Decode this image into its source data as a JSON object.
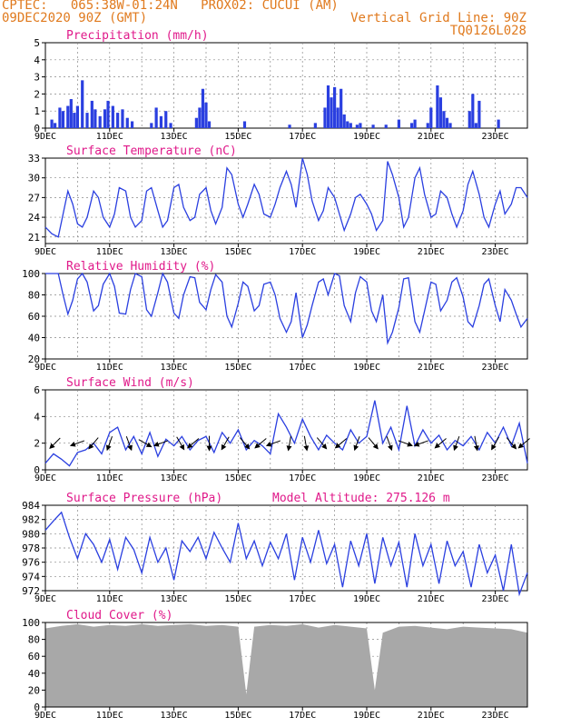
{
  "header": {
    "station": "CPTEC:   065:38W-01:24N   PROX02: CUCUI (AM)",
    "date": "09DEC2020 90Z (GMT)",
    "grid_note": "Vertical Grid Line: 90Z",
    "code": "TQ0126L028"
  },
  "colors": {
    "header": "#e07a1e",
    "title": "#e0198a",
    "line": "#2a3fe0",
    "bar": "#2a3fe0",
    "wind_arrow": "#000000",
    "cloud": "#a8a8a8",
    "grid": "#888888"
  },
  "x_ticks": [
    "9DEC",
    "11DEC",
    "13DEC",
    "15DEC",
    "17DEC",
    "19DEC",
    "21DEC",
    "23DEC"
  ],
  "x_tick_days": [
    0,
    2,
    4,
    6,
    8,
    10,
    12,
    14
  ],
  "chart_data": [
    {
      "type": "bar",
      "title": "Precipitation (mm/h)",
      "ylim": [
        0,
        5
      ],
      "yticks": [
        0,
        1,
        2,
        3,
        4,
        5
      ],
      "xlim": [
        0,
        15
      ],
      "x": [
        0.2,
        0.3,
        0.45,
        0.55,
        0.7,
        0.8,
        0.9,
        1.0,
        1.15,
        1.3,
        1.45,
        1.55,
        1.7,
        1.85,
        1.95,
        2.1,
        2.25,
        2.4,
        2.55,
        2.7,
        3.3,
        3.45,
        3.6,
        3.75,
        3.9,
        4.7,
        4.8,
        4.9,
        5.0,
        5.1,
        6.2,
        7.6,
        8.4,
        8.7,
        8.8,
        8.9,
        9.0,
        9.1,
        9.2,
        9.3,
        9.4,
        9.5,
        9.7,
        9.8,
        10.2,
        10.6,
        11.0,
        11.4,
        11.5,
        11.9,
        12.0,
        12.2,
        12.3,
        12.4,
        12.5,
        12.6,
        13.2,
        13.3,
        13.4,
        13.5,
        14.1
      ],
      "values": [
        0.5,
        0.3,
        1.2,
        1.0,
        1.3,
        1.7,
        0.9,
        1.3,
        2.8,
        0.9,
        1.6,
        1.1,
        0.7,
        1.1,
        1.6,
        1.3,
        0.9,
        1.1,
        0.6,
        0.4,
        0.3,
        1.2,
        0.7,
        1.0,
        0.3,
        0.6,
        1.2,
        2.3,
        1.5,
        0.4,
        0.4,
        0.2,
        0.3,
        1.2,
        2.5,
        1.8,
        2.4,
        1.2,
        2.3,
        0.8,
        0.4,
        0.3,
        0.2,
        0.3,
        0.2,
        0.2,
        0.5,
        0.3,
        0.5,
        0.3,
        1.2,
        2.5,
        1.8,
        1.0,
        0.6,
        0.3,
        1.0,
        2.0,
        0.3,
        1.6,
        0.5
      ]
    },
    {
      "type": "line",
      "title": "Surface Temperature (nC)",
      "ylim": [
        20,
        33
      ],
      "yticks": [
        21,
        24,
        27,
        30,
        33
      ],
      "xlim": [
        0,
        15
      ],
      "series": [
        {
          "x": [
            0,
            0.2,
            0.4,
            0.55,
            0.7,
            0.85,
            1.0,
            1.15,
            1.3,
            1.5,
            1.65,
            1.8,
            2.0,
            2.15,
            2.3,
            2.5,
            2.65,
            2.8,
            3.0,
            3.15,
            3.3,
            3.5,
            3.65,
            3.8,
            4.0,
            4.15,
            4.3,
            4.5,
            4.65,
            4.8,
            5.0,
            5.15,
            5.3,
            5.5,
            5.65,
            5.8,
            6.0,
            6.15,
            6.3,
            6.5,
            6.65,
            6.8,
            7.0,
            7.15,
            7.3,
            7.5,
            7.65,
            7.8,
            8.0,
            8.15,
            8.3,
            8.5,
            8.65,
            8.8,
            9.0,
            9.15,
            9.3,
            9.5,
            9.65,
            9.8,
            10.0,
            10.15,
            10.3,
            10.5,
            10.65,
            10.8,
            11.0,
            11.15,
            11.3,
            11.5,
            11.65,
            11.8,
            12.0,
            12.15,
            12.3,
            12.5,
            12.65,
            12.8,
            13.0,
            13.15,
            13.3,
            13.5,
            13.65,
            13.8,
            14.0,
            14.15,
            14.3,
            14.5,
            14.65,
            14.8,
            15.0
          ],
          "values": [
            22.5,
            21.5,
            21.0,
            24.5,
            28.0,
            26.0,
            23.0,
            22.5,
            24.0,
            28.0,
            27.0,
            24.0,
            22.5,
            24.5,
            28.5,
            28.0,
            24.0,
            22.5,
            23.5,
            28.0,
            28.5,
            25.0,
            22.5,
            23.5,
            28.5,
            29.0,
            25.5,
            23.5,
            24.0,
            27.5,
            28.5,
            25.0,
            23.0,
            25.5,
            31.5,
            30.5,
            26.0,
            24.0,
            26.0,
            29.0,
            27.5,
            24.5,
            24.0,
            26.0,
            28.5,
            31.0,
            29.0,
            25.5,
            33.0,
            30.5,
            26.5,
            23.5,
            25.0,
            28.5,
            27.0,
            24.5,
            22.0,
            24.5,
            27.0,
            27.5,
            26.0,
            24.5,
            22.0,
            23.5,
            32.5,
            30.5,
            27.0,
            22.5,
            24.0,
            30.0,
            31.5,
            27.5,
            24.0,
            24.5,
            28.0,
            27.0,
            24.5,
            22.5,
            25.0,
            29.0,
            31.0,
            27.5,
            24.0,
            22.5,
            26.0,
            28.0,
            24.5,
            26.0,
            28.5,
            28.5,
            27.0
          ]
        }
      ]
    },
    {
      "type": "line",
      "title": "Relative Humidity (%)",
      "ylim": [
        20,
        100
      ],
      "yticks": [
        20,
        40,
        60,
        80,
        100
      ],
      "xlim": [
        0,
        15
      ],
      "series": [
        {
          "x": [
            0,
            0.2,
            0.4,
            0.55,
            0.7,
            0.85,
            1.0,
            1.15,
            1.3,
            1.5,
            1.65,
            1.8,
            2.0,
            2.15,
            2.3,
            2.5,
            2.65,
            2.8,
            3.0,
            3.15,
            3.3,
            3.5,
            3.65,
            3.8,
            4.0,
            4.15,
            4.3,
            4.5,
            4.65,
            4.8,
            5.0,
            5.15,
            5.3,
            5.5,
            5.65,
            5.8,
            6.0,
            6.15,
            6.3,
            6.5,
            6.65,
            6.8,
            7.0,
            7.15,
            7.3,
            7.5,
            7.65,
            7.8,
            8.0,
            8.15,
            8.3,
            8.5,
            8.65,
            8.8,
            9.0,
            9.15,
            9.3,
            9.5,
            9.65,
            9.8,
            10.0,
            10.15,
            10.3,
            10.5,
            10.65,
            10.8,
            11.0,
            11.15,
            11.3,
            11.5,
            11.65,
            11.8,
            12.0,
            12.15,
            12.3,
            12.5,
            12.65,
            12.8,
            13.0,
            13.15,
            13.3,
            13.5,
            13.65,
            13.8,
            14.0,
            14.15,
            14.3,
            14.5,
            14.65,
            14.8,
            15.0
          ],
          "values": [
            100,
            100,
            100,
            80,
            62,
            75,
            95,
            100,
            92,
            65,
            70,
            90,
            100,
            88,
            63,
            62,
            85,
            100,
            97,
            66,
            60,
            82,
            100,
            92,
            63,
            58,
            80,
            97,
            96,
            73,
            66,
            85,
            99,
            92,
            60,
            50,
            72,
            92,
            88,
            65,
            70,
            90,
            92,
            80,
            58,
            45,
            55,
            82,
            40,
            52,
            70,
            92,
            95,
            80,
            100,
            98,
            70,
            55,
            82,
            97,
            92,
            65,
            55,
            80,
            35,
            45,
            68,
            95,
            96,
            55,
            45,
            65,
            92,
            90,
            65,
            75,
            92,
            96,
            78,
            55,
            50,
            70,
            90,
            95,
            70,
            55,
            85,
            75,
            62,
            50,
            58
          ]
        }
      ]
    },
    {
      "type": "line",
      "title": "Surface Wind (m/s)",
      "ylim": [
        0,
        6
      ],
      "yticks": [
        0,
        2,
        4,
        6
      ],
      "xlim": [
        0,
        15
      ],
      "series": [
        {
          "x": [
            0,
            0.25,
            0.5,
            0.75,
            1.0,
            1.25,
            1.5,
            1.75,
            2.0,
            2.25,
            2.5,
            2.75,
            3.0,
            3.25,
            3.5,
            3.75,
            4.0,
            4.25,
            4.5,
            4.75,
            5.0,
            5.25,
            5.5,
            5.75,
            6.0,
            6.25,
            6.5,
            6.75,
            7.0,
            7.25,
            7.5,
            7.75,
            8.0,
            8.25,
            8.5,
            8.75,
            9.0,
            9.25,
            9.5,
            9.75,
            10.0,
            10.25,
            10.5,
            10.75,
            11.0,
            11.25,
            11.5,
            11.75,
            12.0,
            12.25,
            12.5,
            12.75,
            13.0,
            13.25,
            13.5,
            13.75,
            14.0,
            14.25,
            14.5,
            14.75,
            15.0
          ],
          "values": [
            0.5,
            1.2,
            0.8,
            0.3,
            1.3,
            1.5,
            2.0,
            1.2,
            2.8,
            3.2,
            1.5,
            2.5,
            1.2,
            2.8,
            1.0,
            2.3,
            1.8,
            2.5,
            1.5,
            2.2,
            2.5,
            1.3,
            2.8,
            2.0,
            3.0,
            1.5,
            2.2,
            1.8,
            1.2,
            4.2,
            3.2,
            2.0,
            3.8,
            2.5,
            1.5,
            2.6,
            2.0,
            1.5,
            3.0,
            2.0,
            2.5,
            5.2,
            2.0,
            3.2,
            1.5,
            4.8,
            1.8,
            3.0,
            2.0,
            2.6,
            1.5,
            2.2,
            1.8,
            2.5,
            1.5,
            2.8,
            2.0,
            3.2,
            1.8,
            3.5,
            0.5
          ]
        }
      ],
      "arrows": [
        {
          "x": 0.3,
          "dir": 225
        },
        {
          "x": 1.0,
          "dir": 250
        },
        {
          "x": 1.5,
          "dir": 220
        },
        {
          "x": 2.0,
          "dir": 200
        },
        {
          "x": 2.6,
          "dir": 160
        },
        {
          "x": 3.1,
          "dir": 120
        },
        {
          "x": 3.6,
          "dir": 250
        },
        {
          "x": 4.2,
          "dir": 150
        },
        {
          "x": 4.6,
          "dir": 230
        },
        {
          "x": 5.1,
          "dir": 180
        },
        {
          "x": 5.6,
          "dir": 210
        },
        {
          "x": 6.2,
          "dir": 140
        },
        {
          "x": 6.7,
          "dir": 230
        },
        {
          "x": 7.1,
          "dir": 250
        },
        {
          "x": 7.6,
          "dir": 190
        },
        {
          "x": 8.1,
          "dir": 170
        },
        {
          "x": 8.6,
          "dir": 140
        },
        {
          "x": 9.2,
          "dir": 230
        },
        {
          "x": 9.7,
          "dir": 200
        },
        {
          "x": 10.2,
          "dir": 140
        },
        {
          "x": 10.7,
          "dir": 160
        },
        {
          "x": 11.2,
          "dir": 110
        },
        {
          "x": 11.7,
          "dir": 250
        },
        {
          "x": 12.3,
          "dir": 230
        },
        {
          "x": 12.8,
          "dir": 200
        },
        {
          "x": 13.4,
          "dir": 170
        },
        {
          "x": 14.0,
          "dir": 210
        },
        {
          "x": 14.5,
          "dir": 140
        },
        {
          "x": 14.9,
          "dir": 230
        }
      ]
    },
    {
      "type": "line",
      "title": "Surface Pressure (hPa)",
      "note": "Model Altitude: 275.126 m",
      "ylim": [
        972,
        984
      ],
      "yticks": [
        972,
        974,
        976,
        978,
        980,
        982,
        984
      ],
      "xlim": [
        0,
        15
      ],
      "series": [
        {
          "x": [
            0,
            0.25,
            0.5,
            0.75,
            1.0,
            1.25,
            1.5,
            1.75,
            2.0,
            2.25,
            2.5,
            2.75,
            3.0,
            3.25,
            3.5,
            3.75,
            4.0,
            4.25,
            4.5,
            4.75,
            5.0,
            5.25,
            5.5,
            5.75,
            6.0,
            6.25,
            6.5,
            6.75,
            7.0,
            7.25,
            7.5,
            7.75,
            8.0,
            8.25,
            8.5,
            8.75,
            9.0,
            9.25,
            9.5,
            9.75,
            10.0,
            10.25,
            10.5,
            10.75,
            11.0,
            11.25,
            11.5,
            11.75,
            12.0,
            12.25,
            12.5,
            12.75,
            13.0,
            13.25,
            13.5,
            13.75,
            14.0,
            14.25,
            14.5,
            14.75,
            15.0
          ],
          "values": [
            980.5,
            981.8,
            983.0,
            979.5,
            976.5,
            980.0,
            978.5,
            976.0,
            979.2,
            975.0,
            979.5,
            977.8,
            974.5,
            979.5,
            976.0,
            978.0,
            973.5,
            979.0,
            977.5,
            979.5,
            976.5,
            980.2,
            978.0,
            976.0,
            981.5,
            976.5,
            979.0,
            975.5,
            978.8,
            976.5,
            980.0,
            973.5,
            979.5,
            976.0,
            980.5,
            975.8,
            978.5,
            972.5,
            979.0,
            975.5,
            980.0,
            973.0,
            979.5,
            975.5,
            978.8,
            972.5,
            980.0,
            975.5,
            978.5,
            973.0,
            979.0,
            975.5,
            977.5,
            972.5,
            978.5,
            974.5,
            977.0,
            972.0,
            978.5,
            971.5,
            974.5
          ]
        }
      ]
    },
    {
      "type": "area",
      "title": "Cloud Cover (%)",
      "ylim": [
        0,
        100
      ],
      "yticks": [
        0,
        20,
        40,
        60,
        80,
        100
      ],
      "xlim": [
        0,
        15
      ],
      "x": [
        0,
        0.5,
        1.0,
        1.5,
        2.0,
        2.5,
        3.0,
        3.5,
        4.0,
        4.5,
        5.0,
        5.5,
        6.0,
        6.25,
        6.5,
        7.0,
        7.5,
        8.0,
        8.5,
        9.0,
        9.5,
        10.0,
        10.25,
        10.5,
        11.0,
        11.5,
        12.0,
        12.5,
        13.0,
        13.5,
        14.0,
        14.5,
        15.0
      ],
      "values": [
        93,
        96,
        98,
        95,
        97,
        96,
        98,
        96,
        97,
        98,
        96,
        97,
        95,
        15,
        95,
        97,
        96,
        98,
        94,
        97,
        95,
        93,
        20,
        88,
        95,
        96,
        94,
        92,
        95,
        94,
        93,
        92,
        88
      ]
    }
  ]
}
